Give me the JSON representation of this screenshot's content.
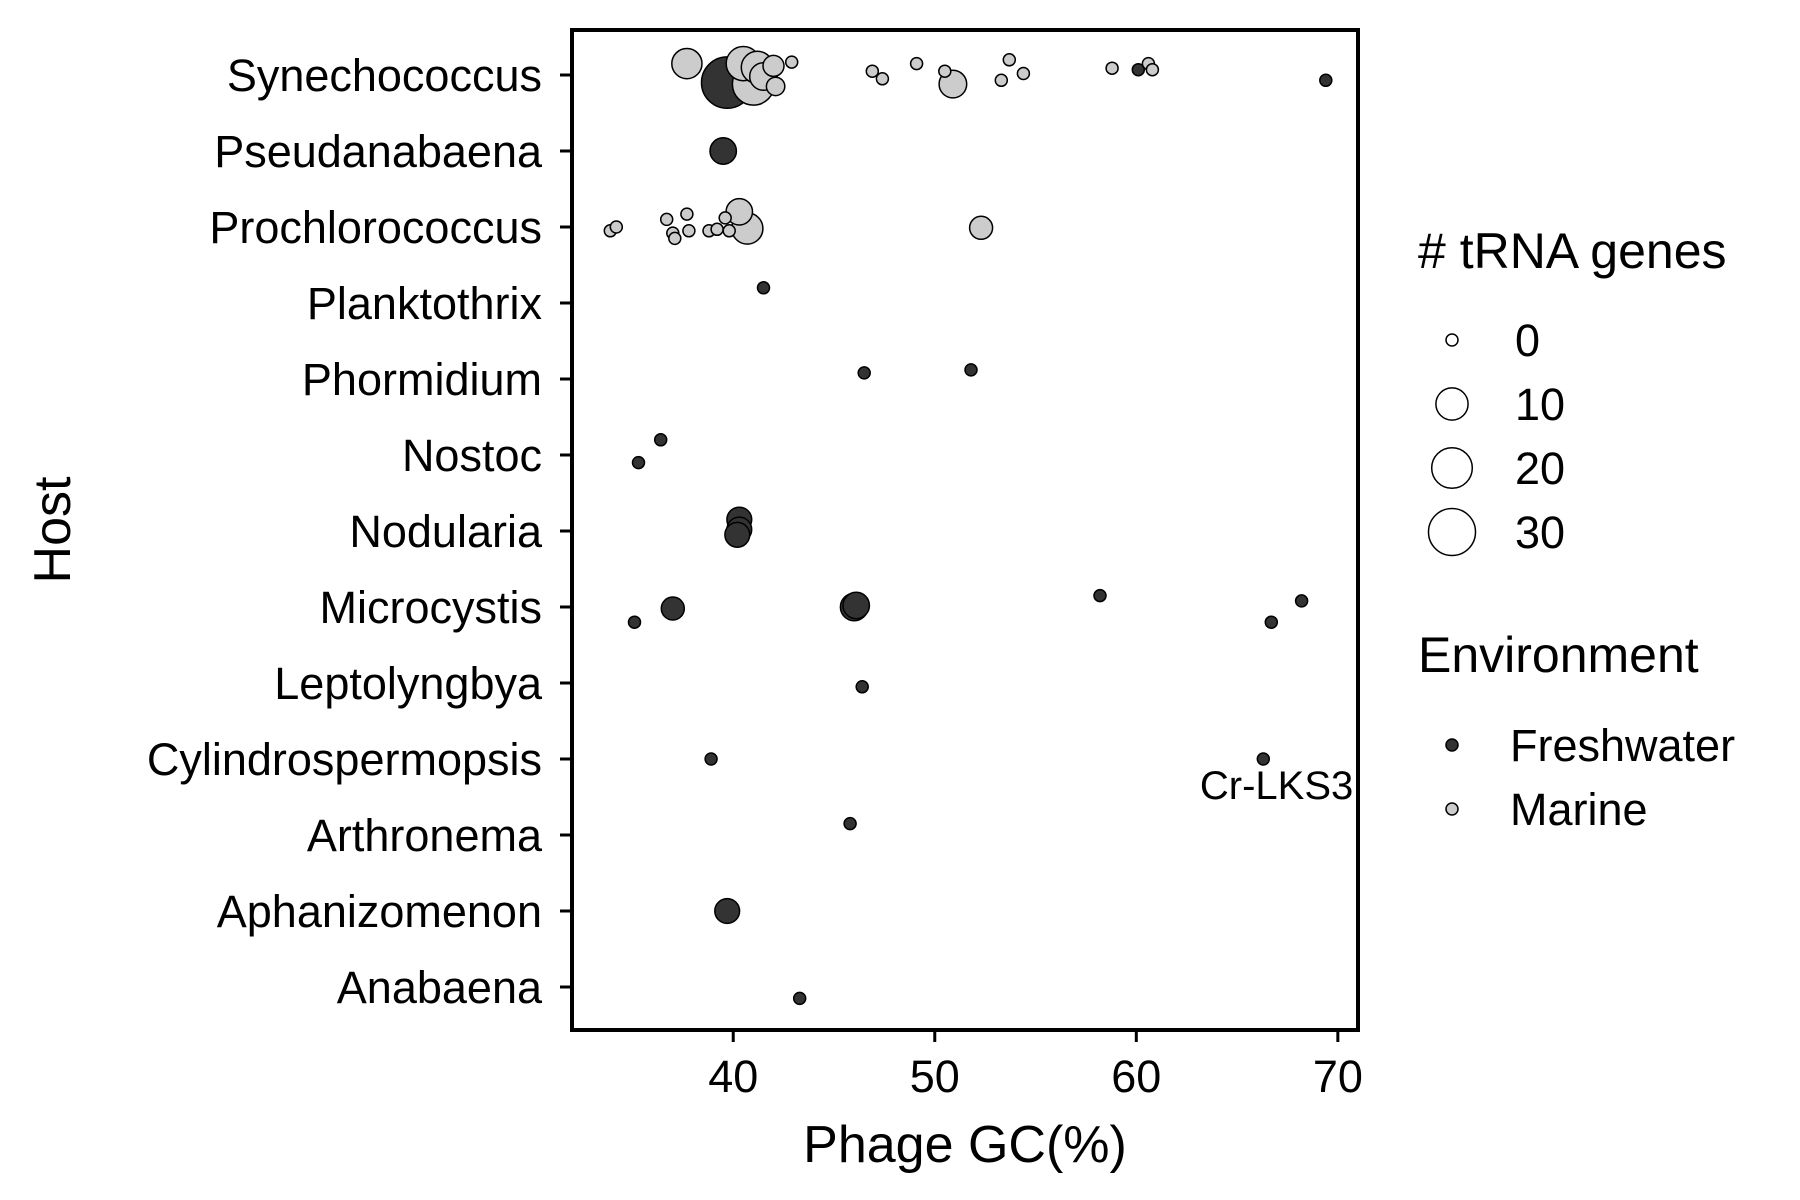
{
  "chart_data": {
    "type": "scatter",
    "xlabel": "Phage GC(%)",
    "ylabel": "Host",
    "xlim": [
      32,
      71
    ],
    "xticks": [
      40,
      50,
      60,
      70
    ],
    "grid": false,
    "legend_placement": "right",
    "categories": [
      "Synechococcus",
      "Pseudanabaena",
      "Prochlorococcus",
      "Planktothrix",
      "Phormidium",
      "Nostoc",
      "Nodularia",
      "Microcystis",
      "Leptolyngbya",
      "Cylindrospermopsis",
      "Arthronema",
      "Aphanizomenon",
      "Anabaena"
    ],
    "size_legend": {
      "title": "# tRNA genes",
      "values": [
        0,
        10,
        20,
        30
      ],
      "labels": [
        "0",
        "10",
        "20",
        "30"
      ]
    },
    "color_legend": {
      "title": "Environment",
      "entries": [
        {
          "label": "Freshwater",
          "color": "#333333"
        },
        {
          "label": "Marine",
          "color": "#cccccc"
        }
      ]
    },
    "points": [
      {
        "host": "Synechococcus",
        "gc": 37.7,
        "trna": 8,
        "env": "Marine",
        "jitter": 0.15
      },
      {
        "host": "Synechococcus",
        "gc": 40.5,
        "trna": 12,
        "env": "Marine",
        "jitter": 0.15
      },
      {
        "host": "Synechococcus",
        "gc": 41.2,
        "trna": 10,
        "env": "Marine",
        "jitter": 0.1
      },
      {
        "host": "Synechococcus",
        "gc": 41.0,
        "trna": 22,
        "env": "Marine",
        "jitter": -0.12
      },
      {
        "host": "Synechococcus",
        "gc": 41.5,
        "trna": 6,
        "env": "Marine",
        "jitter": -0.02
      },
      {
        "host": "Synechococcus",
        "gc": 42.1,
        "trna": 1,
        "env": "Marine",
        "jitter": -0.15
      },
      {
        "host": "Synechococcus",
        "gc": 42.0,
        "trna": 2,
        "env": "Marine",
        "jitter": 0.12
      },
      {
        "host": "Synechococcus",
        "gc": 39.7,
        "trna": 38,
        "env": "Freshwater",
        "jitter": -0.1
      },
      {
        "host": "Synechococcus",
        "gc": 42.9,
        "trna": 0,
        "env": "Marine",
        "jitter": 0.17
      },
      {
        "host": "Synechococcus",
        "gc": 46.9,
        "trna": 0,
        "env": "Marine",
        "jitter": 0.05
      },
      {
        "host": "Synechococcus",
        "gc": 47.4,
        "trna": 0,
        "env": "Marine",
        "jitter": -0.05
      },
      {
        "host": "Synechococcus",
        "gc": 49.1,
        "trna": 0,
        "env": "Marine",
        "jitter": 0.15
      },
      {
        "host": "Synechococcus",
        "gc": 50.5,
        "trna": 0,
        "env": "Marine",
        "jitter": 0.05
      },
      {
        "host": "Synechococcus",
        "gc": 50.9,
        "trna": 6,
        "env": "Marine",
        "jitter": -0.12
      },
      {
        "host": "Synechococcus",
        "gc": 53.3,
        "trna": 0,
        "env": "Marine",
        "jitter": -0.07
      },
      {
        "host": "Synechococcus",
        "gc": 53.7,
        "trna": 0,
        "env": "Marine",
        "jitter": 0.2
      },
      {
        "host": "Synechococcus",
        "gc": 54.4,
        "trna": 0,
        "env": "Marine",
        "jitter": 0.02
      },
      {
        "host": "Synechococcus",
        "gc": 58.8,
        "trna": 0,
        "env": "Marine",
        "jitter": 0.09
      },
      {
        "host": "Synechococcus",
        "gc": 60.1,
        "trna": 0,
        "env": "Freshwater",
        "jitter": 0.07
      },
      {
        "host": "Synechococcus",
        "gc": 60.6,
        "trna": 0,
        "env": "Marine",
        "jitter": 0.15
      },
      {
        "host": "Synechococcus",
        "gc": 60.8,
        "trna": 0,
        "env": "Marine",
        "jitter": 0.07
      },
      {
        "host": "Synechococcus",
        "gc": 69.4,
        "trna": 0,
        "env": "Freshwater",
        "jitter": -0.07
      },
      {
        "host": "Pseudanabaena",
        "gc": 39.5,
        "trna": 5,
        "env": "Freshwater",
        "jitter": 0.0
      },
      {
        "host": "Prochlorococcus",
        "gc": 33.9,
        "trna": 0,
        "env": "Marine",
        "jitter": -0.05
      },
      {
        "host": "Prochlorococcus",
        "gc": 34.2,
        "trna": 0,
        "env": "Marine",
        "jitter": 0.0
      },
      {
        "host": "Prochlorococcus",
        "gc": 36.7,
        "trna": 0,
        "env": "Marine",
        "jitter": 0.1
      },
      {
        "host": "Prochlorococcus",
        "gc": 37.0,
        "trna": 0,
        "env": "Marine",
        "jitter": -0.08
      },
      {
        "host": "Prochlorococcus",
        "gc": 37.1,
        "trna": 0,
        "env": "Marine",
        "jitter": -0.15
      },
      {
        "host": "Prochlorococcus",
        "gc": 37.7,
        "trna": 0,
        "env": "Marine",
        "jitter": 0.17
      },
      {
        "host": "Prochlorococcus",
        "gc": 37.8,
        "trna": 0,
        "env": "Marine",
        "jitter": -0.05
      },
      {
        "host": "Prochlorococcus",
        "gc": 38.8,
        "trna": 0,
        "env": "Marine",
        "jitter": -0.05
      },
      {
        "host": "Prochlorococcus",
        "gc": 39.2,
        "trna": 0,
        "env": "Marine",
        "jitter": -0.03
      },
      {
        "host": "Prochlorococcus",
        "gc": 39.6,
        "trna": 0,
        "env": "Marine",
        "jitter": 0.12
      },
      {
        "host": "Prochlorococcus",
        "gc": 39.8,
        "trna": 0,
        "env": "Marine",
        "jitter": -0.05
      },
      {
        "host": "Prochlorococcus",
        "gc": 40.3,
        "trna": 5,
        "env": "Marine",
        "jitter": 0.2
      },
      {
        "host": "Prochlorococcus",
        "gc": 40.7,
        "trna": 9,
        "env": "Marine",
        "jitter": -0.02
      },
      {
        "host": "Prochlorococcus",
        "gc": 52.3,
        "trna": 3,
        "env": "Marine",
        "jitter": -0.01
      },
      {
        "host": "Planktothrix",
        "gc": 41.5,
        "trna": 0,
        "env": "Freshwater",
        "jitter": 0.2
      },
      {
        "host": "Phormidium",
        "gc": 46.5,
        "trna": 0,
        "env": "Freshwater",
        "jitter": 0.08
      },
      {
        "host": "Phormidium",
        "gc": 51.8,
        "trna": 0,
        "env": "Freshwater",
        "jitter": 0.12
      },
      {
        "host": "Nostoc",
        "gc": 36.4,
        "trna": 0,
        "env": "Freshwater",
        "jitter": 0.2
      },
      {
        "host": "Nostoc",
        "gc": 35.3,
        "trna": 0,
        "env": "Freshwater",
        "jitter": -0.1
      },
      {
        "host": "Nodularia",
        "gc": 40.3,
        "trna": 4,
        "env": "Freshwater",
        "jitter": 0.15
      },
      {
        "host": "Nodularia",
        "gc": 40.3,
        "trna": 4,
        "env": "Freshwater",
        "jitter": 0.02
      },
      {
        "host": "Nodularia",
        "gc": 40.2,
        "trna": 4,
        "env": "Freshwater",
        "jitter": -0.05
      },
      {
        "host": "Microcystis",
        "gc": 35.1,
        "trna": 0,
        "env": "Freshwater",
        "jitter": -0.2
      },
      {
        "host": "Microcystis",
        "gc": 37.0,
        "trna": 3,
        "env": "Freshwater",
        "jitter": -0.02
      },
      {
        "host": "Microcystis",
        "gc": 46.0,
        "trna": 6,
        "env": "Freshwater",
        "jitter": 0.0
      },
      {
        "host": "Microcystis",
        "gc": 46.1,
        "trna": 5,
        "env": "Freshwater",
        "jitter": 0.02
      },
      {
        "host": "Microcystis",
        "gc": 58.2,
        "trna": 0,
        "env": "Freshwater",
        "jitter": 0.15
      },
      {
        "host": "Microcystis",
        "gc": 66.7,
        "trna": 0,
        "env": "Freshwater",
        "jitter": -0.2
      },
      {
        "host": "Microcystis",
        "gc": 68.2,
        "trna": 0,
        "env": "Freshwater",
        "jitter": 0.08
      },
      {
        "host": "Leptolyngbya",
        "gc": 46.4,
        "trna": 0,
        "env": "Freshwater",
        "jitter": -0.05
      },
      {
        "host": "Cylindrospermopsis",
        "gc": 38.9,
        "trna": 0,
        "env": "Freshwater",
        "jitter": 0.0
      },
      {
        "host": "Cylindrospermopsis",
        "gc": 66.3,
        "trna": 0,
        "env": "Freshwater",
        "jitter": 0.0
      },
      {
        "host": "Arthronema",
        "gc": 45.8,
        "trna": 0,
        "env": "Freshwater",
        "jitter": 0.15
      },
      {
        "host": "Aphanizomenon",
        "gc": 39.7,
        "trna": 4,
        "env": "Freshwater",
        "jitter": 0.0
      },
      {
        "host": "Anabaena",
        "gc": 43.3,
        "trna": 0,
        "env": "Freshwater",
        "jitter": -0.15
      }
    ],
    "annotations": [
      {
        "text": "Cr-LKS3",
        "host": "Cylindrospermopsis",
        "gc": 66.3
      }
    ]
  }
}
